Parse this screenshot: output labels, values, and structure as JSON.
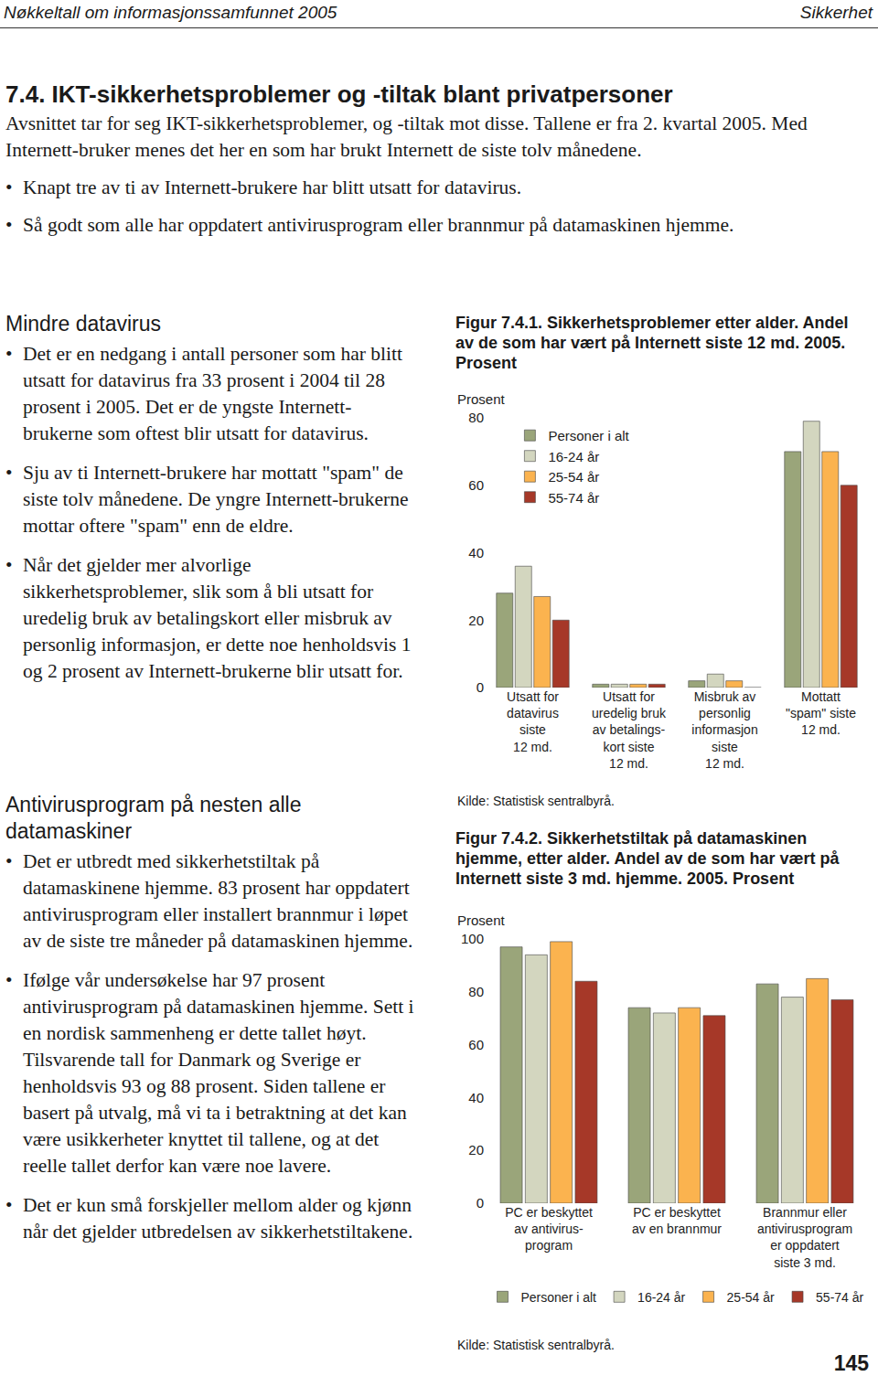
{
  "header": {
    "left": "Nøkkeltall om informasjonssamfunnet 2005",
    "right": "Sikkerhet"
  },
  "section": {
    "title": "7.4. IKT-sikkerhetsproblemer og -tiltak blant privatpersoner",
    "intro": "Avsnittet tar for seg IKT-sikkerhetsproblemer, og -tiltak mot disse. Tallene er fra 2. kvartal 2005. Med Internett-bruker menes det her en som har brukt Internett de siste tolv månedene.",
    "bullets": [
      "Knapt tre av ti av Internett-brukere har blitt utsatt for datavirus.",
      "Så godt som alle har oppdatert antivirusprogram eller brannmur på datamaskinen hjemme."
    ]
  },
  "columns": [
    {
      "heading": "Mindre datavirus",
      "bullets": [
        "Det er en nedgang i antall personer som har blitt utsatt for datavirus fra 33 prosent i 2004 til 28 prosent i 2005. Det er de yngste Internett-brukerne som oftest blir utsatt for datavirus.",
        "Sju av ti Internett-brukere har mottatt \"spam\" de siste tolv månedene. De yngre Internett-brukerne mottar oftere \"spam\" enn de eldre.",
        "Når det gjelder mer alvorlige sikkerhetsproblemer, slik som å bli utsatt for uredelig bruk av betalingskort eller misbruk av personlig informasjon, er dette noe henholdsvis 1 og 2 prosent av Internett-brukerne blir utsatt for."
      ]
    },
    {
      "heading": "Antivirusprogram på nesten alle datamaskiner",
      "bullets": [
        "Det er utbredt med sikkerhetstiltak på datamaskinene hjemme. 83 prosent har oppdatert antivirusprogram eller installert brannmur i løpet av de siste tre måneder på datamaskinen hjemme.",
        "Ifølge vår undersøkelse har 97 prosent antivirusprogram på datamaskinen hjemme. Sett i en nordisk sammenheng er dette tallet høyt. Tilsvarende tall for Danmark og Sverige er henholdsvis 93 og 88 prosent. Siden tallene er basert på utvalg, må vi ta i betraktning at det kan være usikkerheter knyttet til tallene, og at det reelle tallet derfor kan være noe lavere.",
        "Det er kun små forskjeller mellom alder og kjønn når det gjelder utbredelsen av sikkerhetstiltakene."
      ]
    }
  ],
  "chart_data": [
    {
      "type": "bar",
      "title": "Figur 7.4.1. Sikkerhetsproblemer etter alder. Andel av de som har vært på Internett siste 12 md. 2005. Prosent",
      "ylabel": "Prosent",
      "categories": [
        "Utsatt for\ndatavirus\nsiste\n12 md.",
        "Utsatt for\nuredelig bruk\nav betalings-\nkort siste\n12 md.",
        "Misbruk av\npersonlig\ninformasjon\nsiste\n12 md.",
        "Mottatt\n\"spam\" siste\n12 md."
      ],
      "series": [
        {
          "name": "Personer i alt",
          "color": "#9aa57a",
          "values": [
            28,
            1,
            2,
            70
          ]
        },
        {
          "name": "16-24 år",
          "color": "#d3d6bf",
          "values": [
            36,
            1,
            4,
            79
          ]
        },
        {
          "name": "25-54 år",
          "color": "#fbb34f",
          "values": [
            27,
            1,
            2,
            70
          ]
        },
        {
          "name": "55-74 år",
          "color": "#a63828",
          "values": [
            20,
            1,
            0,
            60
          ]
        }
      ],
      "ylim": [
        0,
        80
      ],
      "yticks": [
        0,
        20,
        40,
        60,
        80
      ],
      "grid": false,
      "legend": "top-left",
      "source": "Kilde: Statistisk sentralbyrå."
    },
    {
      "type": "bar",
      "title": "Figur 7.4.2. Sikkerhetstiltak på datamaskinen hjemme, etter alder. Andel av de som har vært på Internett siste 3 md. hjemme. 2005. Prosent",
      "ylabel": "Prosent",
      "categories": [
        "PC er beskyttet\nav antivirus-\nprogram",
        "PC er beskyttet\nav en brannmur",
        "Brannmur eller\nantivirusprogram\ner oppdatert\nsiste 3 md."
      ],
      "series": [
        {
          "name": "Personer i alt",
          "color": "#9aa57a",
          "values": [
            97,
            74,
            83
          ]
        },
        {
          "name": "16-24 år",
          "color": "#d3d6bf",
          "values": [
            94,
            72,
            78
          ]
        },
        {
          "name": "25-54 år",
          "color": "#fbb34f",
          "values": [
            99,
            74,
            85
          ]
        },
        {
          "name": "55-74 år",
          "color": "#a63828",
          "values": [
            84,
            71,
            77
          ]
        }
      ],
      "ylim": [
        0,
        100
      ],
      "yticks": [
        0,
        20,
        40,
        60,
        80,
        100
      ],
      "grid": false,
      "legend": "bottom",
      "source": "Kilde: Statistisk sentralbyrå."
    }
  ],
  "page_number": 145
}
